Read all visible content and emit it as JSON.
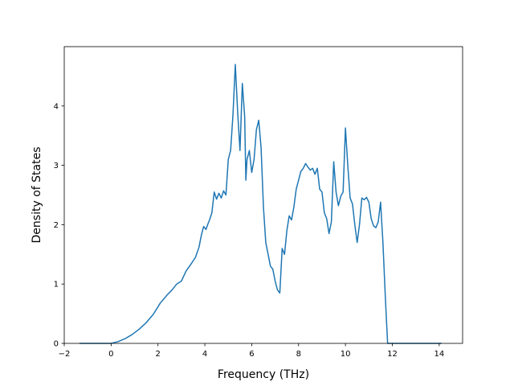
{
  "chart_data": {
    "type": "line",
    "title": "",
    "xlabel": "Frequency (THz)",
    "ylabel": "Density of States",
    "xlim": [
      -2.0,
      15.0
    ],
    "ylim": [
      0,
      5.0
    ],
    "x_ticks": [
      -2,
      0,
      2,
      4,
      6,
      8,
      10,
      12,
      14
    ],
    "x_tick_labels": [
      "−2",
      "0",
      "2",
      "4",
      "6",
      "8",
      "10",
      "12",
      "14"
    ],
    "y_ticks": [
      0,
      1,
      2,
      3,
      4
    ],
    "y_tick_labels": [
      "0",
      "1",
      "2",
      "3",
      "4"
    ],
    "grid": false,
    "legend": "none",
    "colors": {
      "line": "#1f77b4"
    },
    "series": [
      {
        "x": [
          -1.35,
          -0.5,
          0.0,
          0.3,
          0.6,
          0.9,
          1.2,
          1.5,
          1.8,
          2.1,
          2.4,
          2.6,
          2.8,
          3.0,
          3.2,
          3.4,
          3.6,
          3.75,
          3.85,
          3.95,
          4.05,
          4.12,
          4.2,
          4.3,
          4.4,
          4.5,
          4.6,
          4.7,
          4.8,
          4.9,
          5.0,
          5.1,
          5.2,
          5.3,
          5.4,
          5.5,
          5.6,
          5.7,
          5.75,
          5.8,
          5.9,
          6.0,
          6.1,
          6.2,
          6.3,
          6.4,
          6.5,
          6.6,
          6.7,
          6.8,
          6.9,
          7.0,
          7.1,
          7.2,
          7.3,
          7.4,
          7.5,
          7.6,
          7.7,
          7.8,
          7.9,
          8.0,
          8.1,
          8.2,
          8.3,
          8.4,
          8.5,
          8.6,
          8.7,
          8.8,
          8.9,
          9.0,
          9.1,
          9.2,
          9.3,
          9.4,
          9.5,
          9.6,
          9.7,
          9.8,
          9.9,
          10.0,
          10.1,
          10.2,
          10.3,
          10.4,
          10.5,
          10.6,
          10.7,
          10.8,
          10.9,
          11.0,
          11.1,
          11.2,
          11.3,
          11.4,
          11.5,
          11.6,
          11.7,
          11.8,
          11.9,
          12.0,
          12.1,
          12.2,
          12.3,
          12.4,
          12.5,
          12.6,
          12.7,
          12.8,
          12.9,
          13.0,
          13.5,
          14.1
        ],
        "y": [
          0.0,
          0.0,
          0.0,
          0.03,
          0.08,
          0.15,
          0.24,
          0.35,
          0.49,
          0.68,
          0.82,
          0.9,
          1.0,
          1.05,
          1.22,
          1.33,
          1.45,
          1.62,
          1.82,
          1.97,
          1.92,
          2.0,
          2.08,
          2.2,
          2.55,
          2.43,
          2.53,
          2.45,
          2.57,
          2.5,
          3.1,
          3.25,
          3.85,
          4.7,
          3.9,
          3.25,
          4.38,
          3.82,
          2.75,
          3.1,
          3.25,
          2.88,
          3.1,
          3.6,
          3.76,
          3.3,
          2.3,
          1.7,
          1.5,
          1.3,
          1.25,
          1.05,
          0.9,
          0.85,
          1.6,
          1.5,
          1.9,
          2.15,
          2.08,
          2.3,
          2.6,
          2.75,
          2.9,
          2.95,
          3.03,
          2.97,
          2.92,
          2.95,
          2.85,
          2.95,
          2.6,
          2.55,
          2.2,
          2.1,
          1.85,
          2.05,
          3.06,
          2.55,
          2.32,
          2.48,
          2.55,
          3.63,
          3.0,
          2.45,
          2.35,
          2.0,
          1.7,
          2.0,
          2.45,
          2.42,
          2.46,
          2.38,
          2.1,
          1.98,
          1.95,
          2.05,
          2.38,
          1.7,
          0.8,
          0.0,
          0.0,
          0.0,
          0.0,
          0.0,
          0.0,
          0.0,
          0.0,
          0.0,
          0.0,
          0.0,
          0.0,
          0.0,
          0.0,
          0.0
        ]
      }
    ]
  }
}
